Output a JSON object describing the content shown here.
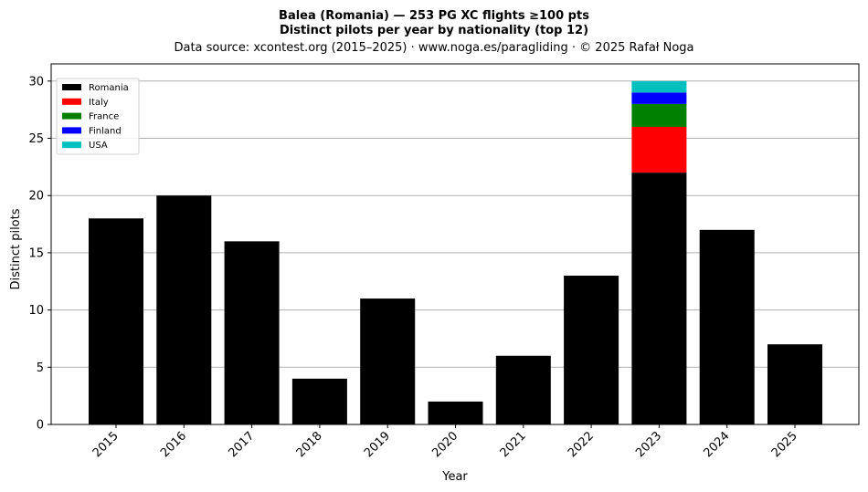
{
  "chart_data": {
    "type": "bar",
    "stacked": true,
    "title": "Balea (Romania)  —  253 PG XC flights ≥100 pts",
    "subtitle": "Distinct pilots per year by nationality (top 12)",
    "source": "Data source: xcontest.org (2015–2025)  ·  www.noga.es/paragliding  ·  © 2025 Rafał Noga",
    "xlabel": "Year",
    "ylabel": "Distinct pilots",
    "ylim": [
      0,
      31.5
    ],
    "yticks": [
      0,
      5,
      10,
      15,
      20,
      25,
      30
    ],
    "grid": "y",
    "legend_position": "top-left",
    "categories": [
      "2015",
      "2016",
      "2017",
      "2018",
      "2019",
      "2020",
      "2021",
      "2022",
      "2023",
      "2024",
      "2025"
    ],
    "series": [
      {
        "name": "Romania",
        "color": "#000000",
        "values": [
          18,
          20,
          16,
          4,
          11,
          2,
          6,
          13,
          22,
          17,
          7
        ]
      },
      {
        "name": "Italy",
        "color": "#ff0000",
        "values": [
          0,
          0,
          0,
          0,
          0,
          0,
          0,
          0,
          4,
          0,
          0
        ]
      },
      {
        "name": "France",
        "color": "#008000",
        "values": [
          0,
          0,
          0,
          0,
          0,
          0,
          0,
          0,
          2,
          0,
          0
        ]
      },
      {
        "name": "Finland",
        "color": "#0000ff",
        "values": [
          0,
          0,
          0,
          0,
          0,
          0,
          0,
          0,
          1,
          0,
          0
        ]
      },
      {
        "name": "USA",
        "color": "#00bfbf",
        "values": [
          0,
          0,
          0,
          0,
          0,
          0,
          0,
          0,
          1,
          0,
          0
        ]
      }
    ]
  }
}
